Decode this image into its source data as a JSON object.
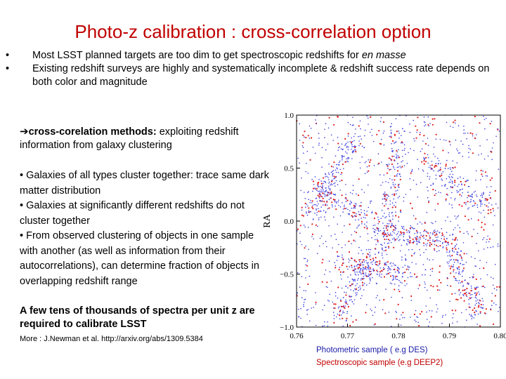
{
  "title": "Photo-z calibration : cross-correlation option",
  "bullets": [
    {
      "text_before": "Most LSST planned targets are too dim to get spectroscopic redshifts for ",
      "text_italic": "en masse"
    },
    {
      "text": "Existing redshift  surveys are highly and systematically incomplete  & redshift success rate depends on both color and magnitude"
    }
  ],
  "method": {
    "arrow": "➔",
    "heading": "cross-corelation methods:",
    "text": " exploiting redshift information from galaxy clustering"
  },
  "points": [
    "• Galaxies of all types cluster together: trace same dark matter distribution",
    "• Galaxies at significantly different redshifts do not cluster together",
    "• From observed clustering of objects in one sample with another (as well as information from their autocorrelations), can determine fraction of objects in overlapping redshift range"
  ],
  "conclusion": "A few tens of thousands of spectra per unit z are required to calibrate LSST",
  "reference": "More : J.Newman et al. http://arxiv.org/abs/1309.5384",
  "legend": {
    "photometric": "Photometric sample ( e.g DES)",
    "spectroscopic": "Spectroscopic sample (e.g DEEP2)"
  },
  "chart_data": {
    "type": "scatter",
    "xlabel": "",
    "ylabel": "RA",
    "xlim": [
      0.76,
      0.8
    ],
    "ylim": [
      -1.0,
      1.0
    ],
    "x_ticks": [
      "0.76",
      "0.77",
      "0.78",
      "0.79",
      "0.80"
    ],
    "y_ticks": [
      "1.0",
      "0.5",
      "0.0",
      "−0.5",
      "−1.0"
    ],
    "colors": {
      "photometric": "#3a3ae0",
      "spectroscopic": "#e02020"
    }
  }
}
